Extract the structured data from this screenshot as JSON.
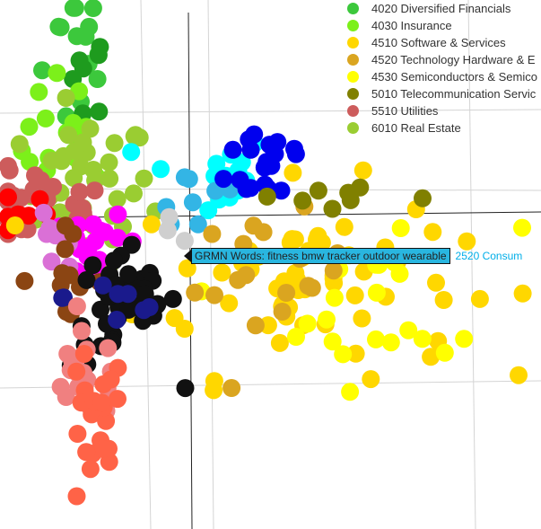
{
  "chart_data": {
    "type": "scatter",
    "title": "",
    "xlabel": "",
    "ylabel": "",
    "grid": true,
    "legend_position": "top-right",
    "legend": [
      {
        "code": "4020",
        "label": "4020 Diversified Financials",
        "color": "#3cc83c"
      },
      {
        "code": "4030",
        "label": "4030 Insurance",
        "color": "#7cf01a"
      },
      {
        "code": "4510",
        "label": "4510 Software & Services",
        "color": "#ffd700"
      },
      {
        "code": "4520",
        "label": "4520 Technology Hardware & E",
        "color": "#daa520"
      },
      {
        "code": "4530",
        "label": "4530 Semiconductors & Semico",
        "color": "#ffff00"
      },
      {
        "code": "5010",
        "label": "5010 Telecommunication Servic",
        "color": "#808000"
      },
      {
        "code": "5510",
        "label": "5510 Utilities",
        "color": "#cd5c5c"
      },
      {
        "code": "6010",
        "label": "6010 Real Estate",
        "color": "#9acd32"
      }
    ],
    "clusters": [
      {
        "group": "Diversified Financials",
        "color": "#3cc83c",
        "count": 14,
        "cx": 0.15,
        "cy": 0.92,
        "sx": 0.035,
        "sy": 0.1
      },
      {
        "group": "Diversified Financials (dark)",
        "color": "#1e9b1e",
        "count": 8,
        "cx": 0.16,
        "cy": 0.86,
        "sx": 0.02,
        "sy": 0.04
      },
      {
        "group": "Insurance",
        "color": "#7cf01a",
        "count": 18,
        "cx": 0.12,
        "cy": 0.72,
        "sx": 0.04,
        "sy": 0.07
      },
      {
        "group": "Real Estate",
        "color": "#9acd32",
        "count": 40,
        "cx": 0.16,
        "cy": 0.64,
        "sx": 0.06,
        "sy": 0.07
      },
      {
        "group": "Utilities",
        "color": "#cd5c5c",
        "count": 30,
        "cx": 0.07,
        "cy": 0.61,
        "sx": 0.07,
        "sy": 0.035
      },
      {
        "group": "Red",
        "color": "#ff0000",
        "count": 8,
        "cx": 0.03,
        "cy": 0.6,
        "sx": 0.03,
        "sy": 0.025
      },
      {
        "group": "Cyan",
        "color": "#00ffff",
        "count": 18,
        "cx": 0.38,
        "cy": 0.67,
        "sx": 0.06,
        "sy": 0.04
      },
      {
        "group": "Sky blue",
        "color": "#33b5e5",
        "count": 8,
        "cx": 0.36,
        "cy": 0.62,
        "sx": 0.05,
        "sy": 0.04
      },
      {
        "group": "Blue",
        "color": "#0000ee",
        "count": 20,
        "cx": 0.5,
        "cy": 0.7,
        "sx": 0.04,
        "sy": 0.045
      },
      {
        "group": "Software & Services",
        "color": "#ffd700",
        "count": 62,
        "cx": 0.55,
        "cy": 0.47,
        "sx": 0.15,
        "sy": 0.09
      },
      {
        "group": "Semiconductors & Semiconductor Equipment",
        "color": "#ffff00",
        "count": 22,
        "cx": 0.72,
        "cy": 0.43,
        "sx": 0.12,
        "sy": 0.08
      },
      {
        "group": "Technology Hardware & Equipment",
        "color": "#daa520",
        "count": 18,
        "cx": 0.5,
        "cy": 0.47,
        "sx": 0.07,
        "sy": 0.06
      },
      {
        "group": "Telecommunication Services",
        "color": "#808000",
        "count": 8,
        "cx": 0.62,
        "cy": 0.63,
        "sx": 0.12,
        "sy": 0.02
      },
      {
        "group": "Magenta",
        "color": "#ff00ff",
        "count": 20,
        "cx": 0.18,
        "cy": 0.54,
        "sx": 0.04,
        "sy": 0.025
      },
      {
        "group": "Orchid",
        "color": "#da70d6",
        "count": 8,
        "cx": 0.1,
        "cy": 0.54,
        "sx": 0.03,
        "sy": 0.03
      },
      {
        "group": "Brown",
        "color": "#8b4513",
        "count": 12,
        "cx": 0.11,
        "cy": 0.48,
        "sx": 0.04,
        "sy": 0.04
      },
      {
        "group": "Black",
        "color": "#111111",
        "count": 40,
        "cx": 0.23,
        "cy": 0.42,
        "sx": 0.05,
        "sy": 0.06
      },
      {
        "group": "Navy",
        "color": "#1a1a8c",
        "count": 8,
        "cx": 0.22,
        "cy": 0.44,
        "sx": 0.05,
        "sy": 0.04
      },
      {
        "group": "Salmon",
        "color": "#f08080",
        "count": 20,
        "cx": 0.16,
        "cy": 0.29,
        "sx": 0.04,
        "sy": 0.04
      },
      {
        "group": "Tomato",
        "color": "#ff6347",
        "count": 22,
        "cx": 0.17,
        "cy": 0.18,
        "sx": 0.03,
        "sy": 0.08
      },
      {
        "group": "Grey",
        "color": "#cfcfcf",
        "count": 3,
        "cx": 0.34,
        "cy": 0.56,
        "sx": 0.02,
        "sy": 0.02
      }
    ],
    "hover_label": "GRMN Words: fitness bmw tracker outdoor wearable",
    "trailing_label": "2520 Consum"
  }
}
